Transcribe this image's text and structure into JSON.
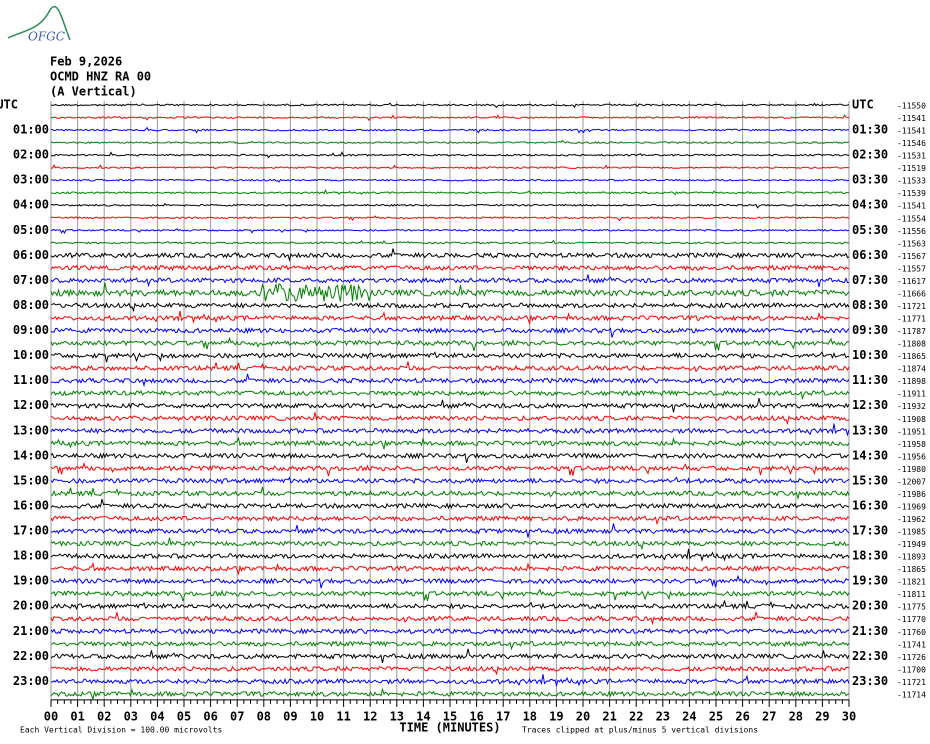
{
  "chart_data": {
    "type": "helicorder",
    "logo": "OFGC",
    "header": [
      "Feb 9,2026",
      "OCMD HNZ RA 00",
      "(A Vertical)"
    ],
    "left_labels": [
      "UTC",
      "01:00",
      "02:00",
      "03:00",
      "04:00",
      "05:00",
      "06:00",
      "07:00",
      "08:00",
      "09:00",
      "10:00",
      "11:00",
      "12:00",
      "13:00",
      "14:00",
      "15:00",
      "16:00",
      "17:00",
      "18:00",
      "19:00",
      "20:00",
      "21:00",
      "22:00",
      "23:00"
    ],
    "right_labels": [
      "UTC",
      "01:30",
      "02:30",
      "03:30",
      "04:30",
      "05:30",
      "06:30",
      "07:30",
      "08:30",
      "09:30",
      "10:30",
      "11:30",
      "12:30",
      "13:30",
      "14:30",
      "15:30",
      "16:30",
      "17:30",
      "18:30",
      "19:30",
      "20:30",
      "21:30",
      "22:30",
      "23:30"
    ],
    "offsets": [
      -11550,
      -11541,
      -11541,
      -11546,
      -11531,
      -11519,
      -11533,
      -11539,
      -11541,
      -11554,
      -11556,
      -11563,
      -11567,
      -11557,
      -11617,
      -11666,
      -11721,
      -11771,
      -11787,
      -11808,
      -11865,
      -11874,
      -11898,
      -11911,
      -11932,
      -11908,
      -11951,
      -11958,
      -11956,
      -11980,
      -12007,
      -11986,
      -11969,
      -11962,
      -11985,
      -11949,
      -11893,
      -11865,
      -11821,
      -11811,
      -11775,
      -11770,
      -11760,
      -11741,
      -11726,
      -11700,
      -11721,
      -11714
    ],
    "trace_colors": [
      "#000000",
      "#ff0000",
      "#0000ff",
      "#008000"
    ],
    "xlim": [
      0,
      30
    ],
    "xticks": [
      {
        "value": 0,
        "label": "00"
      },
      {
        "value": 1,
        "label": "01"
      },
      {
        "value": 2,
        "label": "02"
      },
      {
        "value": 3,
        "label": "03"
      },
      {
        "value": 4,
        "label": "04"
      },
      {
        "value": 5,
        "label": "05"
      },
      {
        "value": 6,
        "label": "06"
      },
      {
        "value": 7,
        "label": "07"
      },
      {
        "value": 8,
        "label": "08"
      },
      {
        "value": 9,
        "label": "09"
      },
      10,
      11,
      12,
      13,
      14,
      15,
      16,
      17,
      18,
      19,
      20,
      21,
      22,
      23,
      24,
      25,
      26,
      27,
      28,
      29,
      30
    ],
    "x_label": "TIME (MINUTES)",
    "footer_left": "Each Vertical Division =  100.00 microvolts",
    "footer_right": "Traces clipped at plus/minus 5 vertical divisions",
    "grid": true
  }
}
